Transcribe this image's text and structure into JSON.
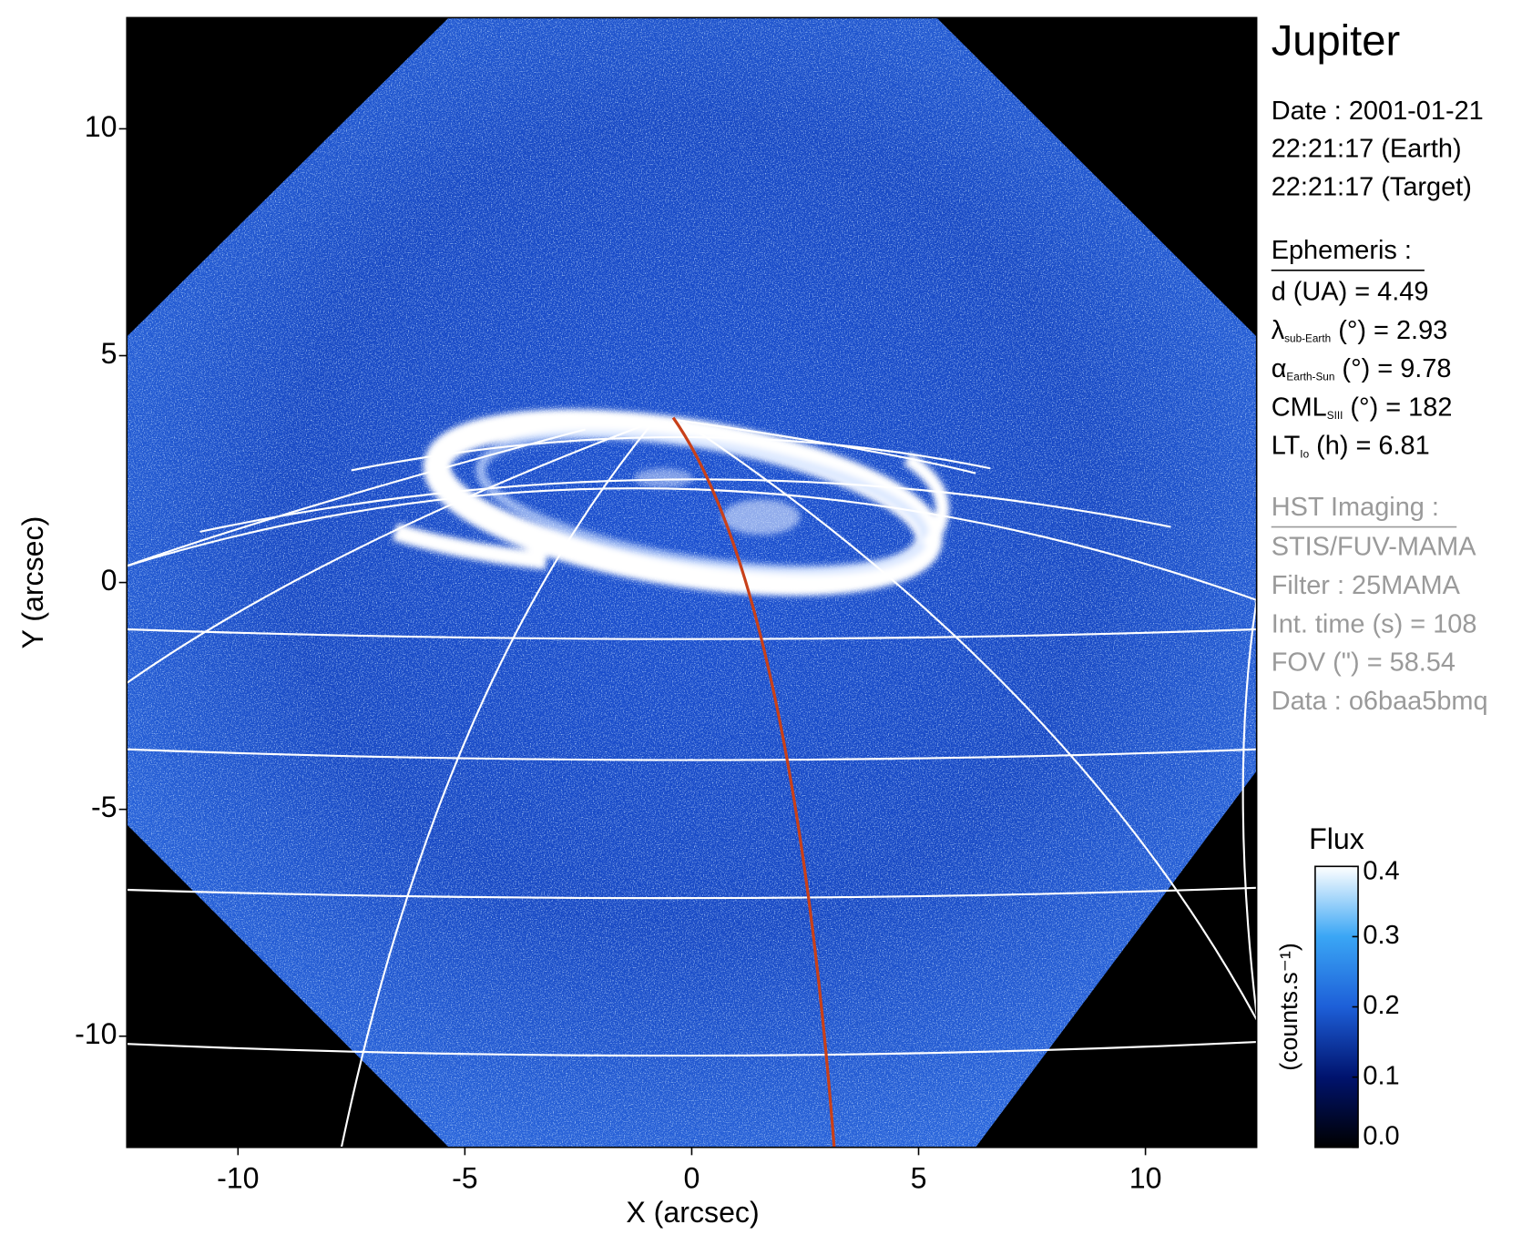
{
  "chart_data": {
    "type": "image",
    "xlabel": "X (arcsec)",
    "ylabel": "Y (arcsec)",
    "xlim": [
      -12.45,
      12.45
    ],
    "ylim": [
      -12.45,
      12.45
    ],
    "xticks": [
      -10,
      -5,
      0,
      5,
      10
    ],
    "yticks": [
      -10,
      -5,
      0,
      5,
      10
    ],
    "colorbar": {
      "title": "Flux",
      "label": "(counts.s⁻¹)",
      "lim": [
        0,
        0.4
      ],
      "ticks": [
        {
          "value": 0,
          "label": "0.0"
        },
        0.1,
        0.2,
        0.3,
        0.4
      ],
      "colors": [
        "#000000",
        "#00136e",
        "#1d5fd8",
        "#3aa6f5",
        "#ffffff"
      ]
    }
  },
  "info": {
    "title": "Jupiter",
    "date_lines": [
      "Date : 2001-01-21",
      "22:21:17 (Earth)",
      "22:21:17 (Target)"
    ],
    "ephemeris_title": "Ephemeris :",
    "ephemeris": [
      {
        "symbol": "d (UA)    = 4.49"
      },
      {
        "symbol": "λ",
        "subscript": "sub-Earth",
        "rest": " (°) = 2.93"
      },
      {
        "symbol": "α",
        "subscript": "Earth-Sun",
        "rest": " (°) = 9.78"
      },
      {
        "symbol": "CML",
        "subscript": "SIII",
        "rest": " (°) = 182"
      },
      {
        "symbol": "LT",
        "subscript": "Io",
        "rest": " (h) = 6.81"
      }
    ],
    "imaging_title": "HST Imaging :",
    "imaging": [
      "STIS/FUV-MAMA",
      "Filter : 25MAMA",
      "Int. time (s) = 108",
      "FOV (\") = 58.54",
      "Data : o6baa5bmq"
    ]
  }
}
